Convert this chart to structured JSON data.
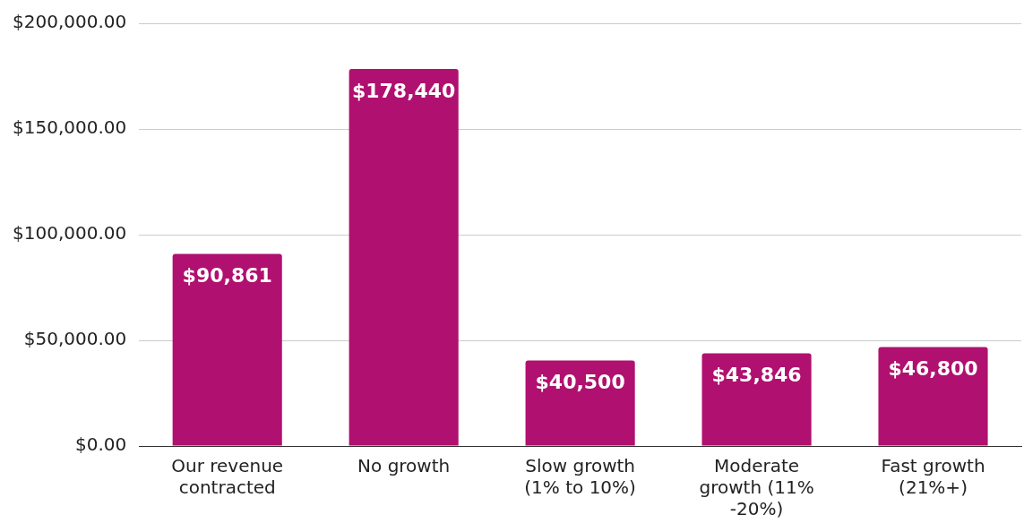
{
  "chart_data": {
    "type": "bar",
    "categories": [
      "Our revenue contracted",
      "No growth",
      "Slow growth (1% to 10%)",
      "Moderate growth (11% -20%)",
      "Fast growth (21%+)"
    ],
    "values": [
      90861,
      178440,
      40500,
      43846,
      46800
    ],
    "value_labels": [
      "$90,861",
      "$178,440",
      "$40,500",
      "$43,846",
      "$46,800"
    ],
    "color": "#b0106f",
    "ylim": [
      0,
      200000
    ],
    "yticks": [
      {
        "value": 0,
        "label": "$0.00"
      },
      {
        "value": 50000,
        "label": "$50,000.00"
      },
      {
        "value": 100000,
        "label": "$100,000.00"
      },
      {
        "value": 150000,
        "label": "$150,000.00"
      },
      {
        "value": 200000,
        "label": "$200,000.00"
      }
    ],
    "grid": "y",
    "legend": false
  }
}
